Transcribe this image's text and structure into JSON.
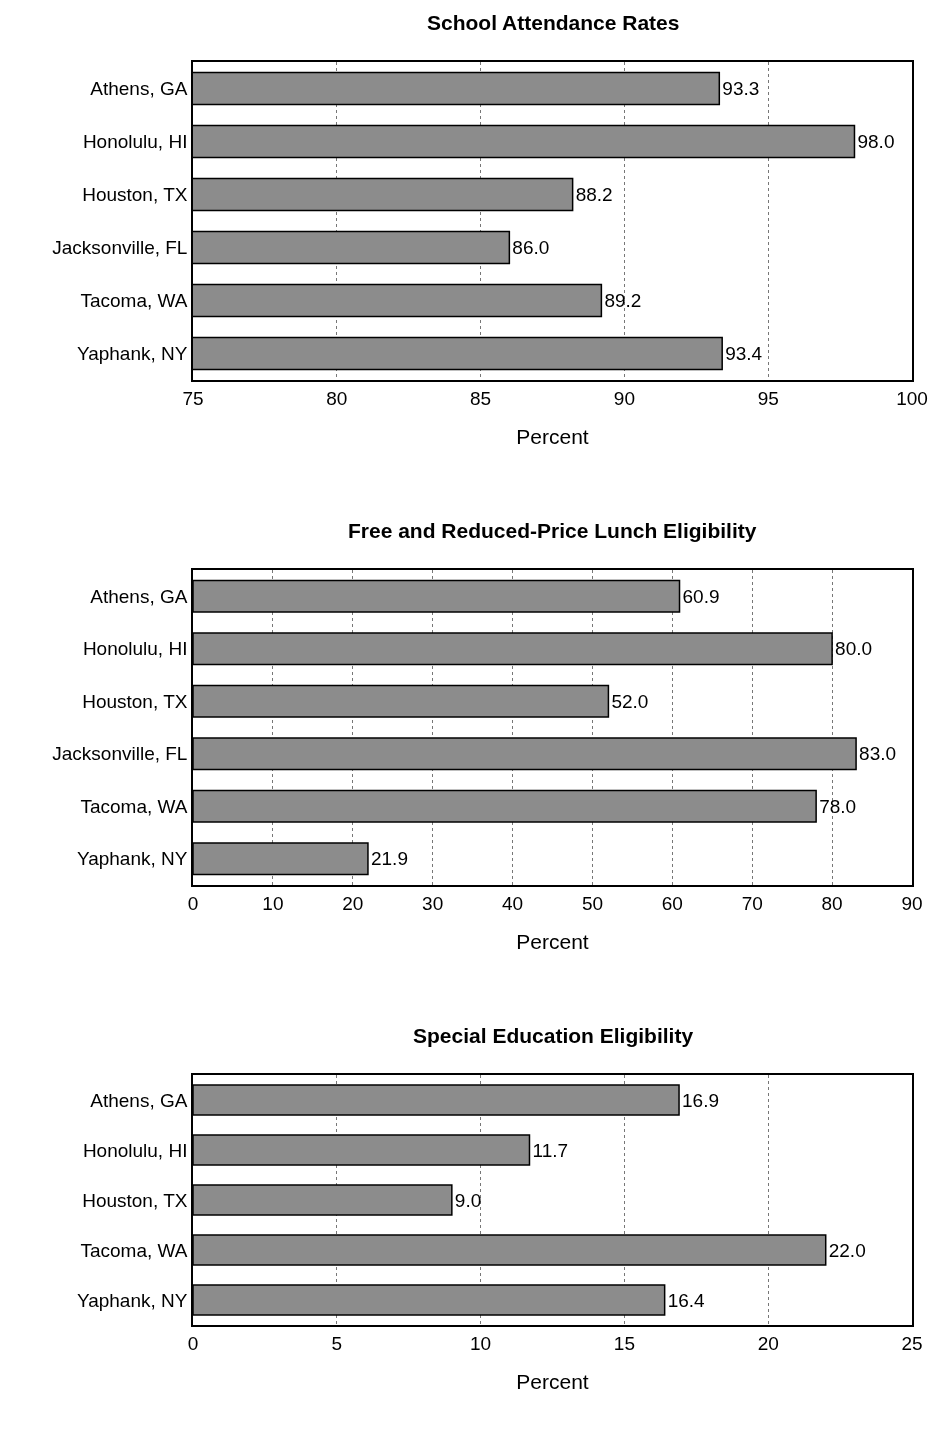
{
  "chart_data": [
    {
      "type": "bar",
      "orientation": "horizontal",
      "title": "School Attendance Rates",
      "xlabel": "Percent",
      "categories": [
        "Athens, GA",
        "Honolulu, HI",
        "Houston, TX",
        "Jacksonville, FL",
        "Tacoma, WA",
        "Yaphank, NY"
      ],
      "values": [
        93.3,
        98.0,
        88.2,
        86.0,
        89.2,
        93.4
      ],
      "value_labels": [
        "93.3",
        "98.0",
        "88.2",
        "86.0",
        "89.2",
        "93.4"
      ],
      "color": "#8c8c8c",
      "xlim": [
        75,
        100
      ],
      "xticks": [
        75,
        80,
        85,
        90,
        95,
        100
      ],
      "grid": "x"
    },
    {
      "type": "bar",
      "orientation": "horizontal",
      "title": "Free and Reduced-Price Lunch Eligibility",
      "xlabel": "Percent",
      "categories": [
        "Athens, GA",
        "Honolulu, HI",
        "Houston, TX",
        "Jacksonville, FL",
        "Tacoma, WA",
        "Yaphank, NY"
      ],
      "values": [
        60.9,
        80.0,
        52.0,
        83.0,
        78.0,
        21.9
      ],
      "value_labels": [
        "60.9",
        "80.0",
        "52.0",
        "83.0",
        "78.0",
        "21.9"
      ],
      "color": "#8c8c8c",
      "xlim": [
        0,
        90
      ],
      "xticks": [
        0,
        10,
        20,
        30,
        40,
        50,
        60,
        70,
        80,
        90
      ],
      "grid": "x"
    },
    {
      "type": "bar",
      "orientation": "horizontal",
      "title": "Special Education Eligibility",
      "xlabel": "Percent",
      "categories": [
        "Athens, GA",
        "Honolulu, HI",
        "Houston, TX",
        "Tacoma, WA",
        "Yaphank, NY"
      ],
      "values": [
        16.9,
        11.7,
        9.0,
        22.0,
        16.4
      ],
      "value_labels": [
        "16.9",
        "11.7",
        "9.0",
        "22.0",
        "16.4"
      ],
      "color": "#8c8c8c",
      "xlim": [
        0,
        25
      ],
      "xticks": [
        0,
        5,
        10,
        15,
        20,
        25
      ],
      "grid": "x"
    }
  ]
}
